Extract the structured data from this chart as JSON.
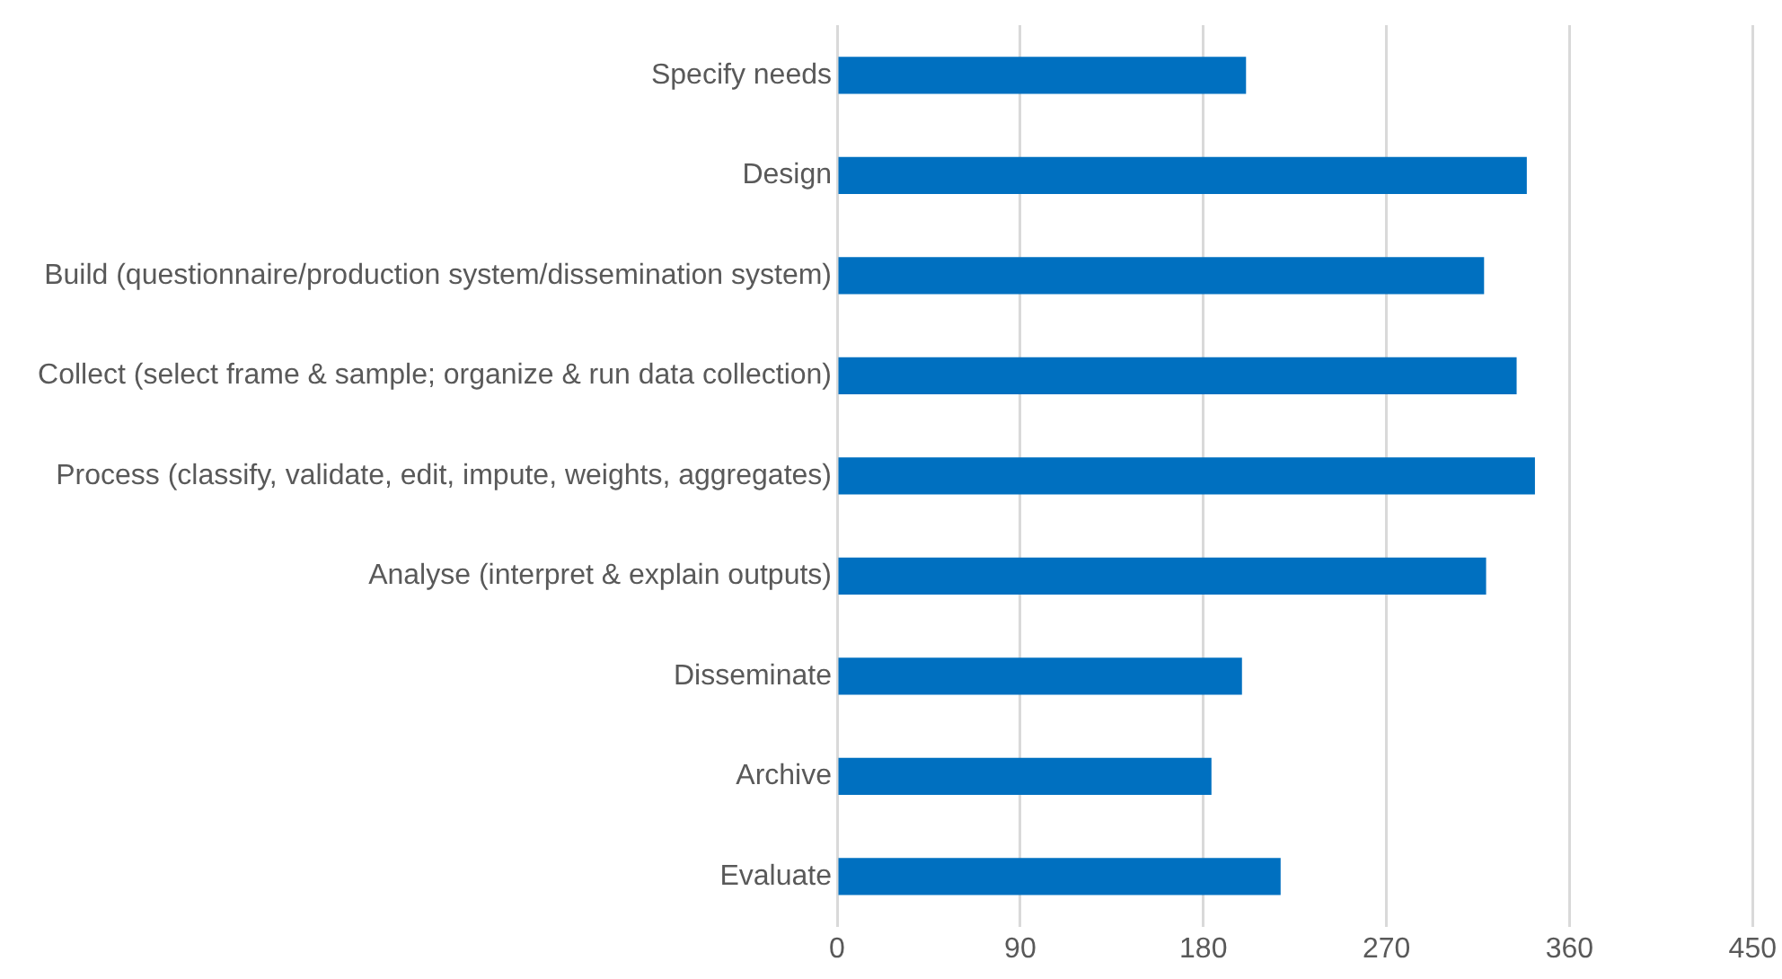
{
  "chart_data": {
    "type": "bar",
    "orientation": "horizontal",
    "categories": [
      "Specify needs",
      "Design",
      "Build (questionnaire/production system/dissemination system)",
      "Collect (select frame & sample; organize & run data collection)",
      "Process (classify, validate, edit, impute, weights, aggregates)",
      "Analyse (interpret & explain outputs)",
      "Disseminate",
      "Archive",
      "Evaluate"
    ],
    "values": [
      201,
      339,
      318,
      334,
      343,
      319,
      199,
      184,
      218
    ],
    "color": "#0070c0",
    "xlim": [
      0,
      450
    ],
    "xticks": [
      0,
      90,
      180,
      270,
      360,
      450
    ],
    "grid": "x",
    "legend": false
  }
}
